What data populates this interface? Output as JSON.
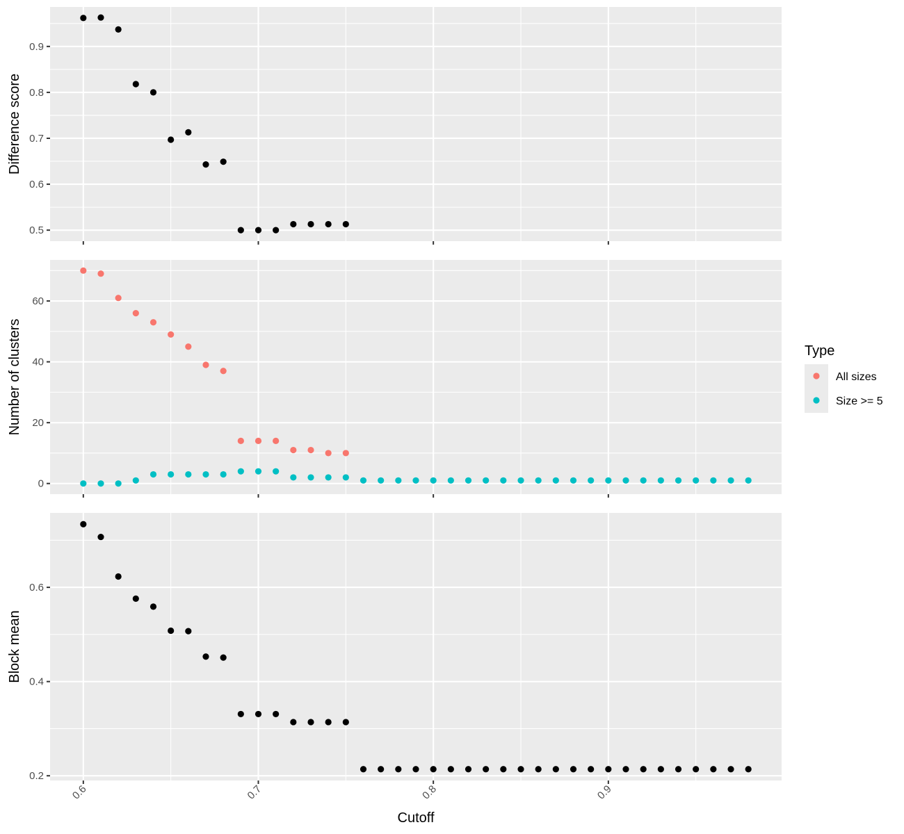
{
  "chart_data": {
    "type": "scatter",
    "xlabel": "Cutoff",
    "x_ticks": [
      0.6,
      0.7,
      0.8,
      0.9
    ],
    "x_tick_labels": [
      "0.6",
      "0.7",
      "0.8",
      "0.9"
    ],
    "xlim": [
      0.581,
      0.999
    ],
    "legend": {
      "title": "Type",
      "position": "right",
      "entries": [
        {
          "label": "All sizes",
          "color": "#F8766D"
        },
        {
          "label": "Size >= 5",
          "color": "#00BFC4"
        }
      ]
    },
    "panels": [
      {
        "ylabel": "Difference score",
        "ylim": [
          0.476,
          0.986
        ],
        "y_ticks": [
          0.5,
          0.6,
          0.7,
          0.8,
          0.9
        ],
        "y_tick_labels": [
          "0.5",
          "0.6",
          "0.7",
          "0.8",
          "0.9"
        ],
        "series": [
          {
            "color": "#000000",
            "x": [
              0.6,
              0.61,
              0.62,
              0.63,
              0.64,
              0.65,
              0.66,
              0.67,
              0.68,
              0.69,
              0.7,
              0.71,
              0.72,
              0.73,
              0.74,
              0.75
            ],
            "y": [
              0.962,
              0.963,
              0.937,
              0.818,
              0.8,
              0.697,
              0.713,
              0.643,
              0.649,
              0.5,
              0.5,
              0.5,
              0.513,
              0.513,
              0.513,
              0.513
            ]
          }
        ]
      },
      {
        "ylabel": "Number of clusters",
        "ylim": [
          -3.5,
          73.5
        ],
        "y_ticks": [
          0,
          20,
          40,
          60
        ],
        "y_tick_labels": [
          "0",
          "20",
          "40",
          "60"
        ],
        "series": [
          {
            "name": "All sizes",
            "color": "#F8766D",
            "x": [
              0.6,
              0.61,
              0.62,
              0.63,
              0.64,
              0.65,
              0.66,
              0.67,
              0.68,
              0.69,
              0.7,
              0.71,
              0.72,
              0.73,
              0.74,
              0.75
            ],
            "y": [
              70,
              69,
              61,
              56,
              53,
              49,
              45,
              39,
              37,
              14,
              14,
              14,
              11,
              11,
              10,
              10
            ]
          },
          {
            "name": "Size >= 5",
            "color": "#00BFC4",
            "x": [
              0.6,
              0.61,
              0.62,
              0.63,
              0.64,
              0.65,
              0.66,
              0.67,
              0.68,
              0.69,
              0.7,
              0.71,
              0.72,
              0.73,
              0.74,
              0.75,
              0.76,
              0.77,
              0.78,
              0.79,
              0.8,
              0.81,
              0.82,
              0.83,
              0.84,
              0.85,
              0.86,
              0.87,
              0.88,
              0.89,
              0.9,
              0.91,
              0.92,
              0.93,
              0.94,
              0.95,
              0.96,
              0.97,
              0.98
            ],
            "y": [
              0,
              0,
              0,
              1,
              3,
              3,
              3,
              3,
              3,
              4,
              4,
              4,
              2,
              2,
              2,
              2,
              1,
              1,
              1,
              1,
              1,
              1,
              1,
              1,
              1,
              1,
              1,
              1,
              1,
              1,
              1,
              1,
              1,
              1,
              1,
              1,
              1,
              1,
              1
            ]
          }
        ]
      },
      {
        "ylabel": "Block mean",
        "ylim": [
          0.19,
          0.758
        ],
        "y_ticks": [
          0.2,
          0.4,
          0.6
        ],
        "y_tick_labels": [
          "0.2",
          "0.4",
          "0.6"
        ],
        "series": [
          {
            "color": "#000000",
            "x": [
              0.6,
              0.61,
              0.62,
              0.63,
              0.64,
              0.65,
              0.66,
              0.67,
              0.68,
              0.69,
              0.7,
              0.71,
              0.72,
              0.73,
              0.74,
              0.75,
              0.76,
              0.77,
              0.78,
              0.79,
              0.8,
              0.81,
              0.82,
              0.83,
              0.84,
              0.85,
              0.86,
              0.87,
              0.88,
              0.89,
              0.9,
              0.91,
              0.92,
              0.93,
              0.94,
              0.95,
              0.96,
              0.97,
              0.98
            ],
            "y": [
              0.734,
              0.707,
              0.623,
              0.576,
              0.559,
              0.508,
              0.507,
              0.453,
              0.451,
              0.331,
              0.331,
              0.331,
              0.314,
              0.314,
              0.314,
              0.314,
              0.214,
              0.214,
              0.214,
              0.214,
              0.214,
              0.214,
              0.214,
              0.214,
              0.214,
              0.214,
              0.214,
              0.214,
              0.214,
              0.214,
              0.214,
              0.214,
              0.214,
              0.214,
              0.214,
              0.214,
              0.214,
              0.214,
              0.214
            ]
          }
        ]
      }
    ]
  }
}
